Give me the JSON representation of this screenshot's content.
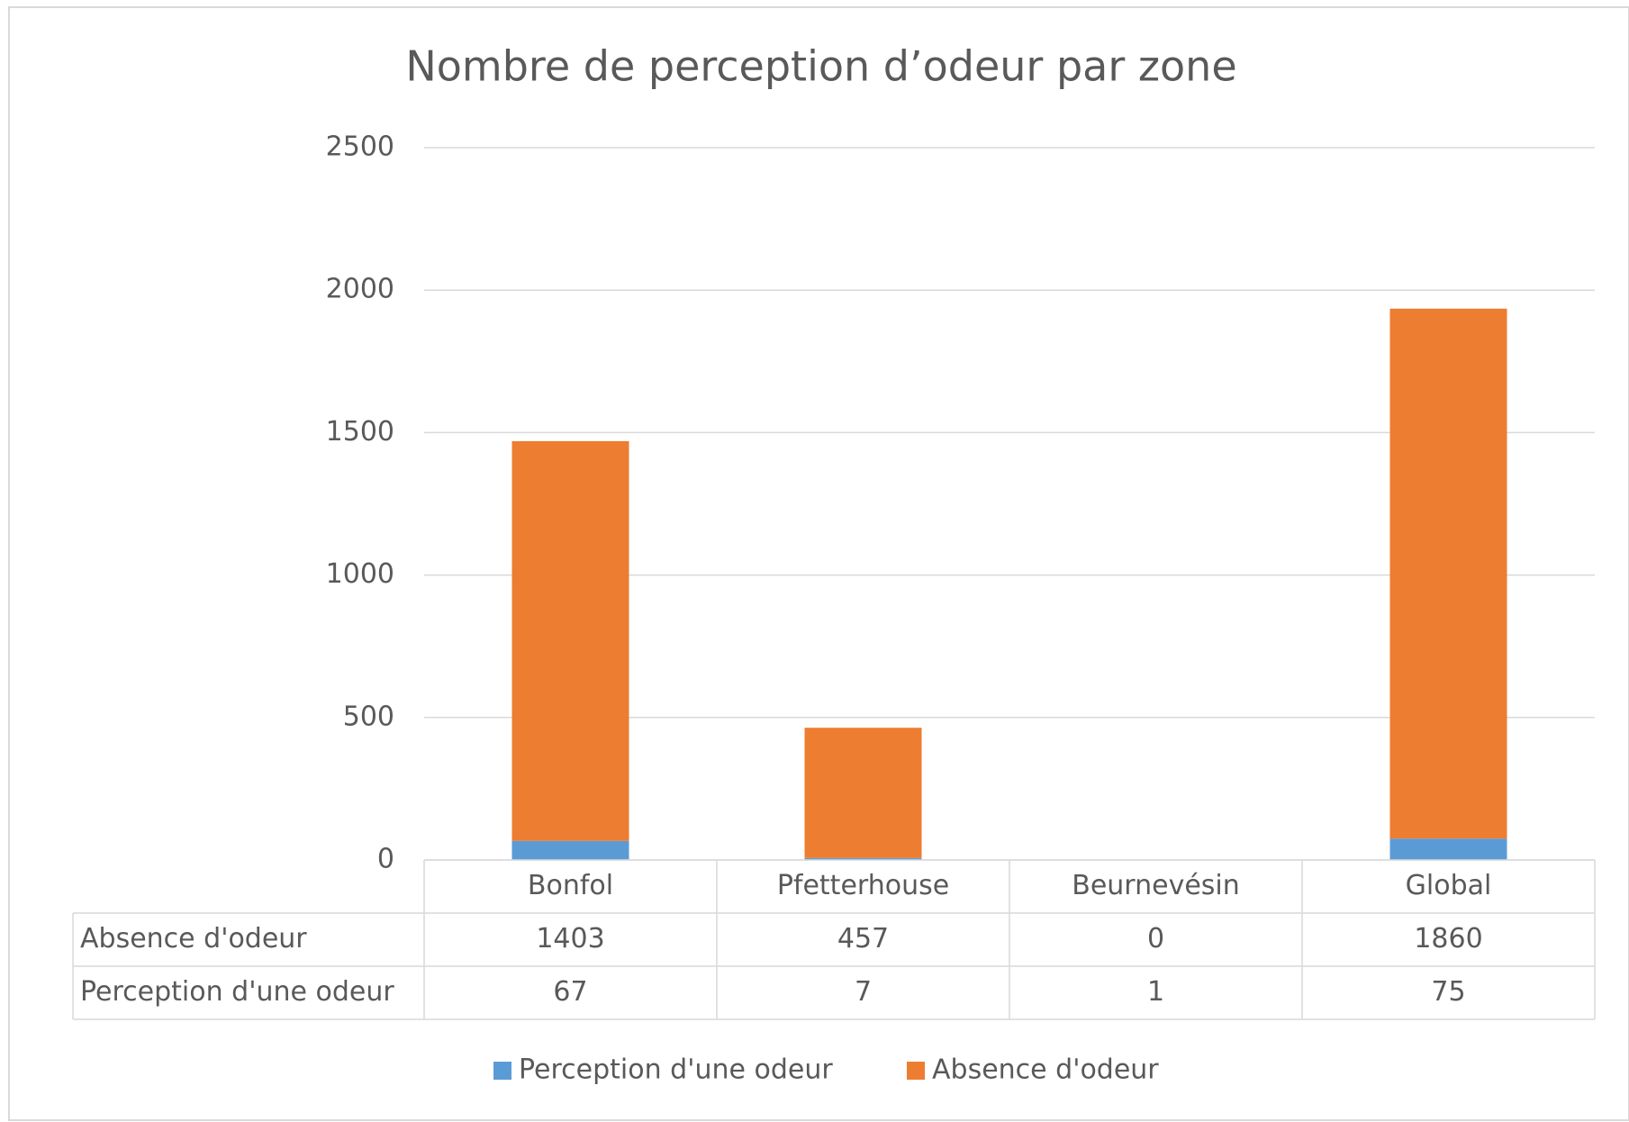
{
  "chart_data": {
    "type": "stacked_bar",
    "title": "Nombre de perception d’odeur par zone",
    "categories": [
      "Bonfol",
      "Pfetterhouse",
      "Beurnevésin",
      "Global"
    ],
    "series": [
      {
        "name": "Perception d'une odeur",
        "color": "#5b9bd5",
        "values": [
          67,
          7,
          1,
          75
        ]
      },
      {
        "name": "Absence d'odeur",
        "color": "#ed7d31",
        "values": [
          1403,
          457,
          0,
          1860
        ]
      }
    ],
    "ylim": [
      0,
      2500
    ],
    "yticks": [
      0,
      500,
      1000,
      1500,
      2000,
      2500
    ],
    "grid": true,
    "legend": "bottom"
  }
}
